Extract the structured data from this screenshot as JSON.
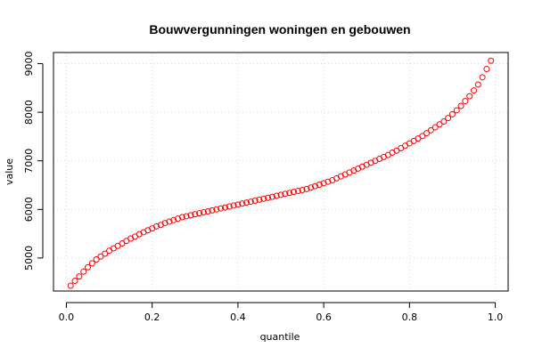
{
  "chart_data": {
    "type": "scatter",
    "title": "Bouwvergunningen woningen en gebouwen",
    "xlabel": "quantile",
    "ylabel": "value",
    "xlim": [
      -0.03,
      1.03
    ],
    "ylim": [
      4320,
      9230
    ],
    "x_ticks": [
      0.0,
      0.2,
      0.4,
      0.6,
      0.8,
      1.0
    ],
    "x_tick_labels": [
      "0.0",
      "0.2",
      "0.4",
      "0.6",
      "0.8",
      "1.0"
    ],
    "y_ticks": [
      5000,
      6000,
      7000,
      8000,
      9000
    ],
    "y_tick_labels": [
      "5000",
      "6000",
      "7000",
      "8000",
      "9000"
    ],
    "grid": true,
    "point_color": "#ff0000",
    "points": [
      {
        "x": 0.01,
        "y": 4430
      },
      {
        "x": 0.02,
        "y": 4530
      },
      {
        "x": 0.03,
        "y": 4620
      },
      {
        "x": 0.04,
        "y": 4720
      },
      {
        "x": 0.05,
        "y": 4810
      },
      {
        "x": 0.06,
        "y": 4890
      },
      {
        "x": 0.07,
        "y": 4970
      },
      {
        "x": 0.08,
        "y": 5030
      },
      {
        "x": 0.09,
        "y": 5090
      },
      {
        "x": 0.1,
        "y": 5150
      },
      {
        "x": 0.11,
        "y": 5200
      },
      {
        "x": 0.12,
        "y": 5250
      },
      {
        "x": 0.13,
        "y": 5300
      },
      {
        "x": 0.14,
        "y": 5350
      },
      {
        "x": 0.15,
        "y": 5400
      },
      {
        "x": 0.16,
        "y": 5440
      },
      {
        "x": 0.17,
        "y": 5490
      },
      {
        "x": 0.18,
        "y": 5530
      },
      {
        "x": 0.19,
        "y": 5570
      },
      {
        "x": 0.2,
        "y": 5610
      },
      {
        "x": 0.21,
        "y": 5650
      },
      {
        "x": 0.22,
        "y": 5680
      },
      {
        "x": 0.23,
        "y": 5720
      },
      {
        "x": 0.24,
        "y": 5750
      },
      {
        "x": 0.25,
        "y": 5780
      },
      {
        "x": 0.26,
        "y": 5810
      },
      {
        "x": 0.27,
        "y": 5840
      },
      {
        "x": 0.28,
        "y": 5860
      },
      {
        "x": 0.29,
        "y": 5880
      },
      {
        "x": 0.3,
        "y": 5900
      },
      {
        "x": 0.31,
        "y": 5920
      },
      {
        "x": 0.32,
        "y": 5940
      },
      {
        "x": 0.33,
        "y": 5960
      },
      {
        "x": 0.34,
        "y": 5980
      },
      {
        "x": 0.35,
        "y": 6000
      },
      {
        "x": 0.36,
        "y": 6020
      },
      {
        "x": 0.37,
        "y": 6040
      },
      {
        "x": 0.38,
        "y": 6060
      },
      {
        "x": 0.39,
        "y": 6080
      },
      {
        "x": 0.4,
        "y": 6100
      },
      {
        "x": 0.41,
        "y": 6120
      },
      {
        "x": 0.42,
        "y": 6140
      },
      {
        "x": 0.43,
        "y": 6160
      },
      {
        "x": 0.44,
        "y": 6180
      },
      {
        "x": 0.45,
        "y": 6200
      },
      {
        "x": 0.46,
        "y": 6220
      },
      {
        "x": 0.47,
        "y": 6240
      },
      {
        "x": 0.48,
        "y": 6260
      },
      {
        "x": 0.49,
        "y": 6280
      },
      {
        "x": 0.5,
        "y": 6300
      },
      {
        "x": 0.51,
        "y": 6320
      },
      {
        "x": 0.52,
        "y": 6340
      },
      {
        "x": 0.53,
        "y": 6360
      },
      {
        "x": 0.54,
        "y": 6380
      },
      {
        "x": 0.55,
        "y": 6400
      },
      {
        "x": 0.56,
        "y": 6420
      },
      {
        "x": 0.57,
        "y": 6450
      },
      {
        "x": 0.58,
        "y": 6480
      },
      {
        "x": 0.59,
        "y": 6510
      },
      {
        "x": 0.6,
        "y": 6540
      },
      {
        "x": 0.61,
        "y": 6570
      },
      {
        "x": 0.62,
        "y": 6600
      },
      {
        "x": 0.63,
        "y": 6640
      },
      {
        "x": 0.64,
        "y": 6680
      },
      {
        "x": 0.65,
        "y": 6720
      },
      {
        "x": 0.66,
        "y": 6760
      },
      {
        "x": 0.67,
        "y": 6800
      },
      {
        "x": 0.68,
        "y": 6840
      },
      {
        "x": 0.69,
        "y": 6880
      },
      {
        "x": 0.7,
        "y": 6920
      },
      {
        "x": 0.71,
        "y": 6960
      },
      {
        "x": 0.72,
        "y": 7000
      },
      {
        "x": 0.73,
        "y": 7040
      },
      {
        "x": 0.74,
        "y": 7080
      },
      {
        "x": 0.75,
        "y": 7120
      },
      {
        "x": 0.76,
        "y": 7170
      },
      {
        "x": 0.77,
        "y": 7210
      },
      {
        "x": 0.78,
        "y": 7260
      },
      {
        "x": 0.79,
        "y": 7310
      },
      {
        "x": 0.8,
        "y": 7360
      },
      {
        "x": 0.81,
        "y": 7410
      },
      {
        "x": 0.82,
        "y": 7460
      },
      {
        "x": 0.83,
        "y": 7510
      },
      {
        "x": 0.84,
        "y": 7570
      },
      {
        "x": 0.85,
        "y": 7630
      },
      {
        "x": 0.86,
        "y": 7690
      },
      {
        "x": 0.87,
        "y": 7750
      },
      {
        "x": 0.88,
        "y": 7810
      },
      {
        "x": 0.89,
        "y": 7880
      },
      {
        "x": 0.9,
        "y": 7960
      },
      {
        "x": 0.91,
        "y": 8040
      },
      {
        "x": 0.92,
        "y": 8130
      },
      {
        "x": 0.93,
        "y": 8230
      },
      {
        "x": 0.94,
        "y": 8330
      },
      {
        "x": 0.95,
        "y": 8450
      },
      {
        "x": 0.96,
        "y": 8570
      },
      {
        "x": 0.97,
        "y": 8720
      },
      {
        "x": 0.98,
        "y": 8890
      },
      {
        "x": 0.99,
        "y": 9060
      }
    ]
  }
}
